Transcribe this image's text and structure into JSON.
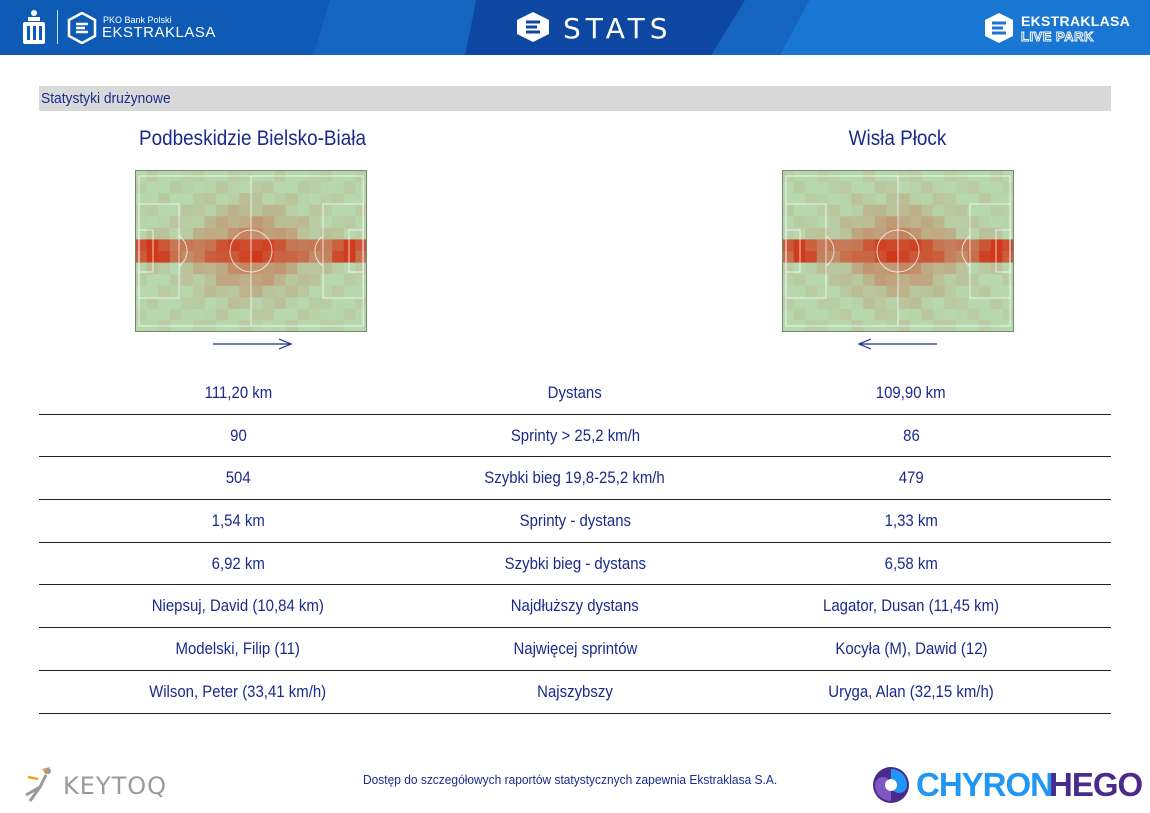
{
  "header": {
    "sponsor_small": "PKO Bank Polski",
    "league": "EKSTRAKLASA",
    "title": "STATS",
    "live_park_line1": "EKSTRAKLASA",
    "live_park_line2": "LIVE PARK",
    "colors": {
      "banner": "#1565c0",
      "text": "#ffffff"
    }
  },
  "section": {
    "title": "Statystyki drużynowe"
  },
  "teams": {
    "home": {
      "name": "Podbeskidzie Bielsko-Biała",
      "attack_direction": "right"
    },
    "away": {
      "name": "Wisła Płock",
      "attack_direction": "left"
    }
  },
  "stats": [
    {
      "label": "Dystans",
      "home": "111,20 km",
      "away": "109,90 km"
    },
    {
      "label": "Sprinty > 25,2 km/h",
      "home": "90",
      "away": "86"
    },
    {
      "label": "Szybki bieg 19,8-25,2 km/h",
      "home": "504",
      "away": "479"
    },
    {
      "label": "Sprinty - dystans",
      "home": "1,54 km",
      "away": "1,33 km"
    },
    {
      "label": "Szybki bieg - dystans",
      "home": "6,92 km",
      "away": "6,58 km"
    },
    {
      "label": "Najdłuższy dystans",
      "home": "Niepsuj, David (10,84 km)",
      "away": "Lagator, Dusan (11,45 km)"
    },
    {
      "label": "Najwięcej sprintów",
      "home": "Modelski, Filip (11)",
      "away": "Kocyła (M), Dawid (12)"
    },
    {
      "label": "Najszybszy",
      "home": "Wilson, Peter (33,41 km/h)",
      "away": "Uryga, Alan (32,15 km/h)"
    }
  ],
  "footer": {
    "note": "Dostęp do szczegółowych raportów statystycznych zapewnia Ekstraklasa S.A.",
    "left_logo": "KEYTOQ",
    "right_logo_part1": "CHYRON",
    "right_logo_part2": "HEGO"
  },
  "icons": {
    "pko": "pko-bank-logo-icon",
    "ekstraklasa": "ekstraklasa-logo-icon",
    "stats": "stats-e-logo-icon",
    "live_park": "live-park-logo-icon",
    "keytoq": "keytoq-figure-icon",
    "chyron": "chyronhego-swirl-icon"
  },
  "colors": {
    "text": "#1a2a8c",
    "section_bg": "#d9d9d9",
    "pitch": "#b7d7ad",
    "heat_high": "#d0381a"
  }
}
